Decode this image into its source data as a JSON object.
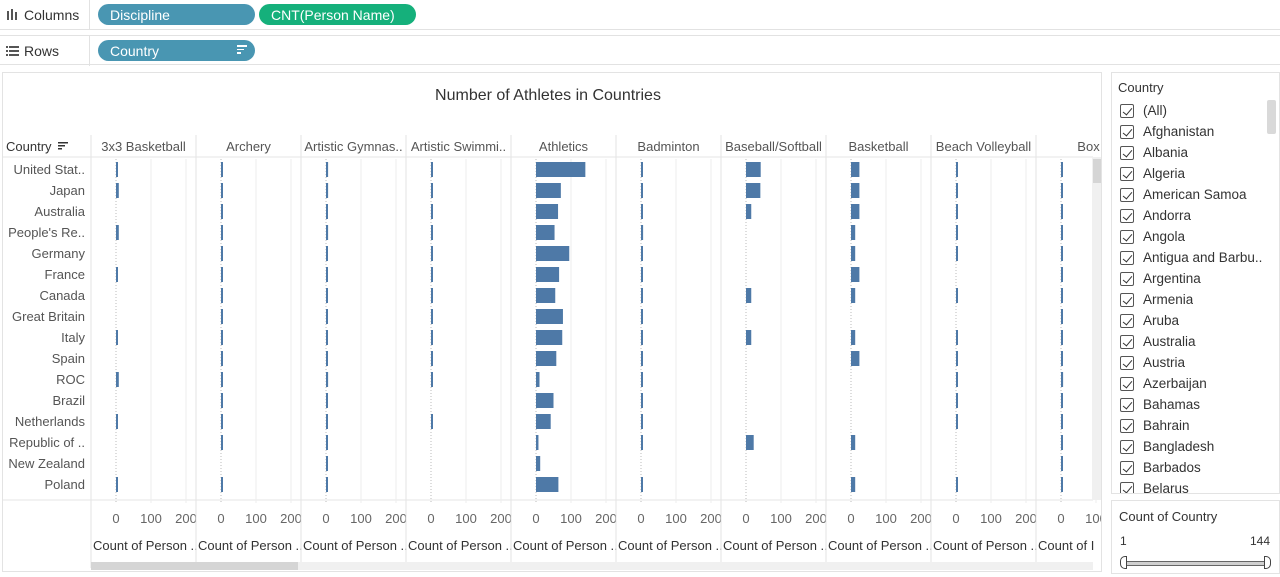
{
  "shelves": {
    "columns_label": "Columns",
    "columns_icon": "columns-icon",
    "columns_pills": [
      "Discipline",
      "CNT(Person Name)"
    ],
    "rows_label": "Rows",
    "rows_icon": "rows-icon",
    "rows_pill": "Country",
    "pill_colors": {
      "dimension": "#4996b2",
      "measure": "#15b07b"
    }
  },
  "viz": {
    "title": "Number of Athletes in Countries",
    "row_header": "Country",
    "bar_color": "#4e79a7"
  },
  "chart_data": {
    "type": "bar",
    "orientation": "horizontal",
    "title": "Number of Athletes in Countries",
    "row_field": "Country",
    "countries": [
      "United Stat..",
      "Japan",
      "Australia",
      "People's Re..",
      "Germany",
      "France",
      "Canada",
      "Great Britain",
      "Italy",
      "Spain",
      "ROC",
      "Brazil",
      "Netherlands",
      "Republic of ..",
      "New Zealand",
      "Poland"
    ],
    "axis_ticks": [
      "0",
      "100",
      "200"
    ],
    "axis_domain": [
      0,
      230
    ],
    "series": [
      {
        "name": "3x3 Basketball",
        "axis_label": "Count of Person ..",
        "values": [
          4,
          8,
          0,
          8,
          0,
          2,
          0,
          0,
          2,
          0,
          8,
          0,
          2,
          0,
          0,
          2
        ]
      },
      {
        "name": "Archery",
        "axis_label": "Count of Person ..",
        "values": [
          3,
          3,
          1,
          3,
          2,
          2,
          1,
          3,
          3,
          2,
          3,
          2,
          1,
          3,
          0,
          1
        ]
      },
      {
        "name": "Artistic Gymnas..",
        "axis_label": "Count of Person ..",
        "values": [
          6,
          6,
          2,
          6,
          5,
          5,
          5,
          5,
          5,
          5,
          6,
          4,
          4,
          3,
          1,
          2
        ]
      },
      {
        "name": "Artistic Swimmi..",
        "axis_label": "Count of Person ..",
        "values": [
          2,
          3,
          2,
          3,
          2,
          1,
          2,
          2,
          3,
          3,
          3,
          0,
          1,
          0,
          0,
          0
        ]
      },
      {
        "name": "Athletics",
        "axis_label": "Count of Person ..",
        "values": [
          141,
          71,
          63,
          53,
          95,
          66,
          55,
          77,
          75,
          58,
          10,
          50,
          42,
          7,
          12,
          64
        ]
      },
      {
        "name": "Badminton",
        "axis_label": "Count of Person ..",
        "values": [
          2,
          5,
          1,
          6,
          2,
          1,
          4,
          2,
          1,
          1,
          1,
          1,
          1,
          5,
          0,
          1
        ]
      },
      {
        "name": "Baseball/Softball",
        "axis_label": "Count of Person ..",
        "values": [
          42,
          41,
          15,
          0,
          0,
          0,
          15,
          0,
          15,
          0,
          0,
          0,
          0,
          22,
          0,
          0
        ]
      },
      {
        "name": "Basketball",
        "axis_label": "Count of Person ..",
        "values": [
          24,
          24,
          24,
          12,
          12,
          24,
          12,
          0,
          12,
          24,
          0,
          0,
          0,
          12,
          0,
          12
        ]
      },
      {
        "name": "Beach Volleyball",
        "axis_label": "Count of Person ..",
        "values": [
          4,
          2,
          2,
          1,
          4,
          0,
          4,
          0,
          4,
          1,
          4,
          4,
          4,
          0,
          0,
          4
        ]
      },
      {
        "name": "Box",
        "axis_label": "Count of I",
        "values": [
          4,
          3,
          2,
          3,
          3,
          2,
          1,
          3,
          2,
          3,
          6,
          3,
          2,
          2,
          1,
          2
        ]
      }
    ]
  },
  "filter": {
    "title": "Country",
    "items": [
      "(All)",
      "Afghanistan",
      "Albania",
      "Algeria",
      "American Samoa",
      "Andorra",
      "Angola",
      "Antigua and Barbu..",
      "Argentina",
      "Armenia",
      "Aruba",
      "Australia",
      "Austria",
      "Azerbaijan",
      "Bahamas",
      "Bahrain",
      "Bangladesh",
      "Barbados",
      "Belarus"
    ]
  },
  "range_filter": {
    "title": "Count of Country",
    "min": "1",
    "max": "144",
    "selected_fraction": [
      0,
      1
    ]
  }
}
